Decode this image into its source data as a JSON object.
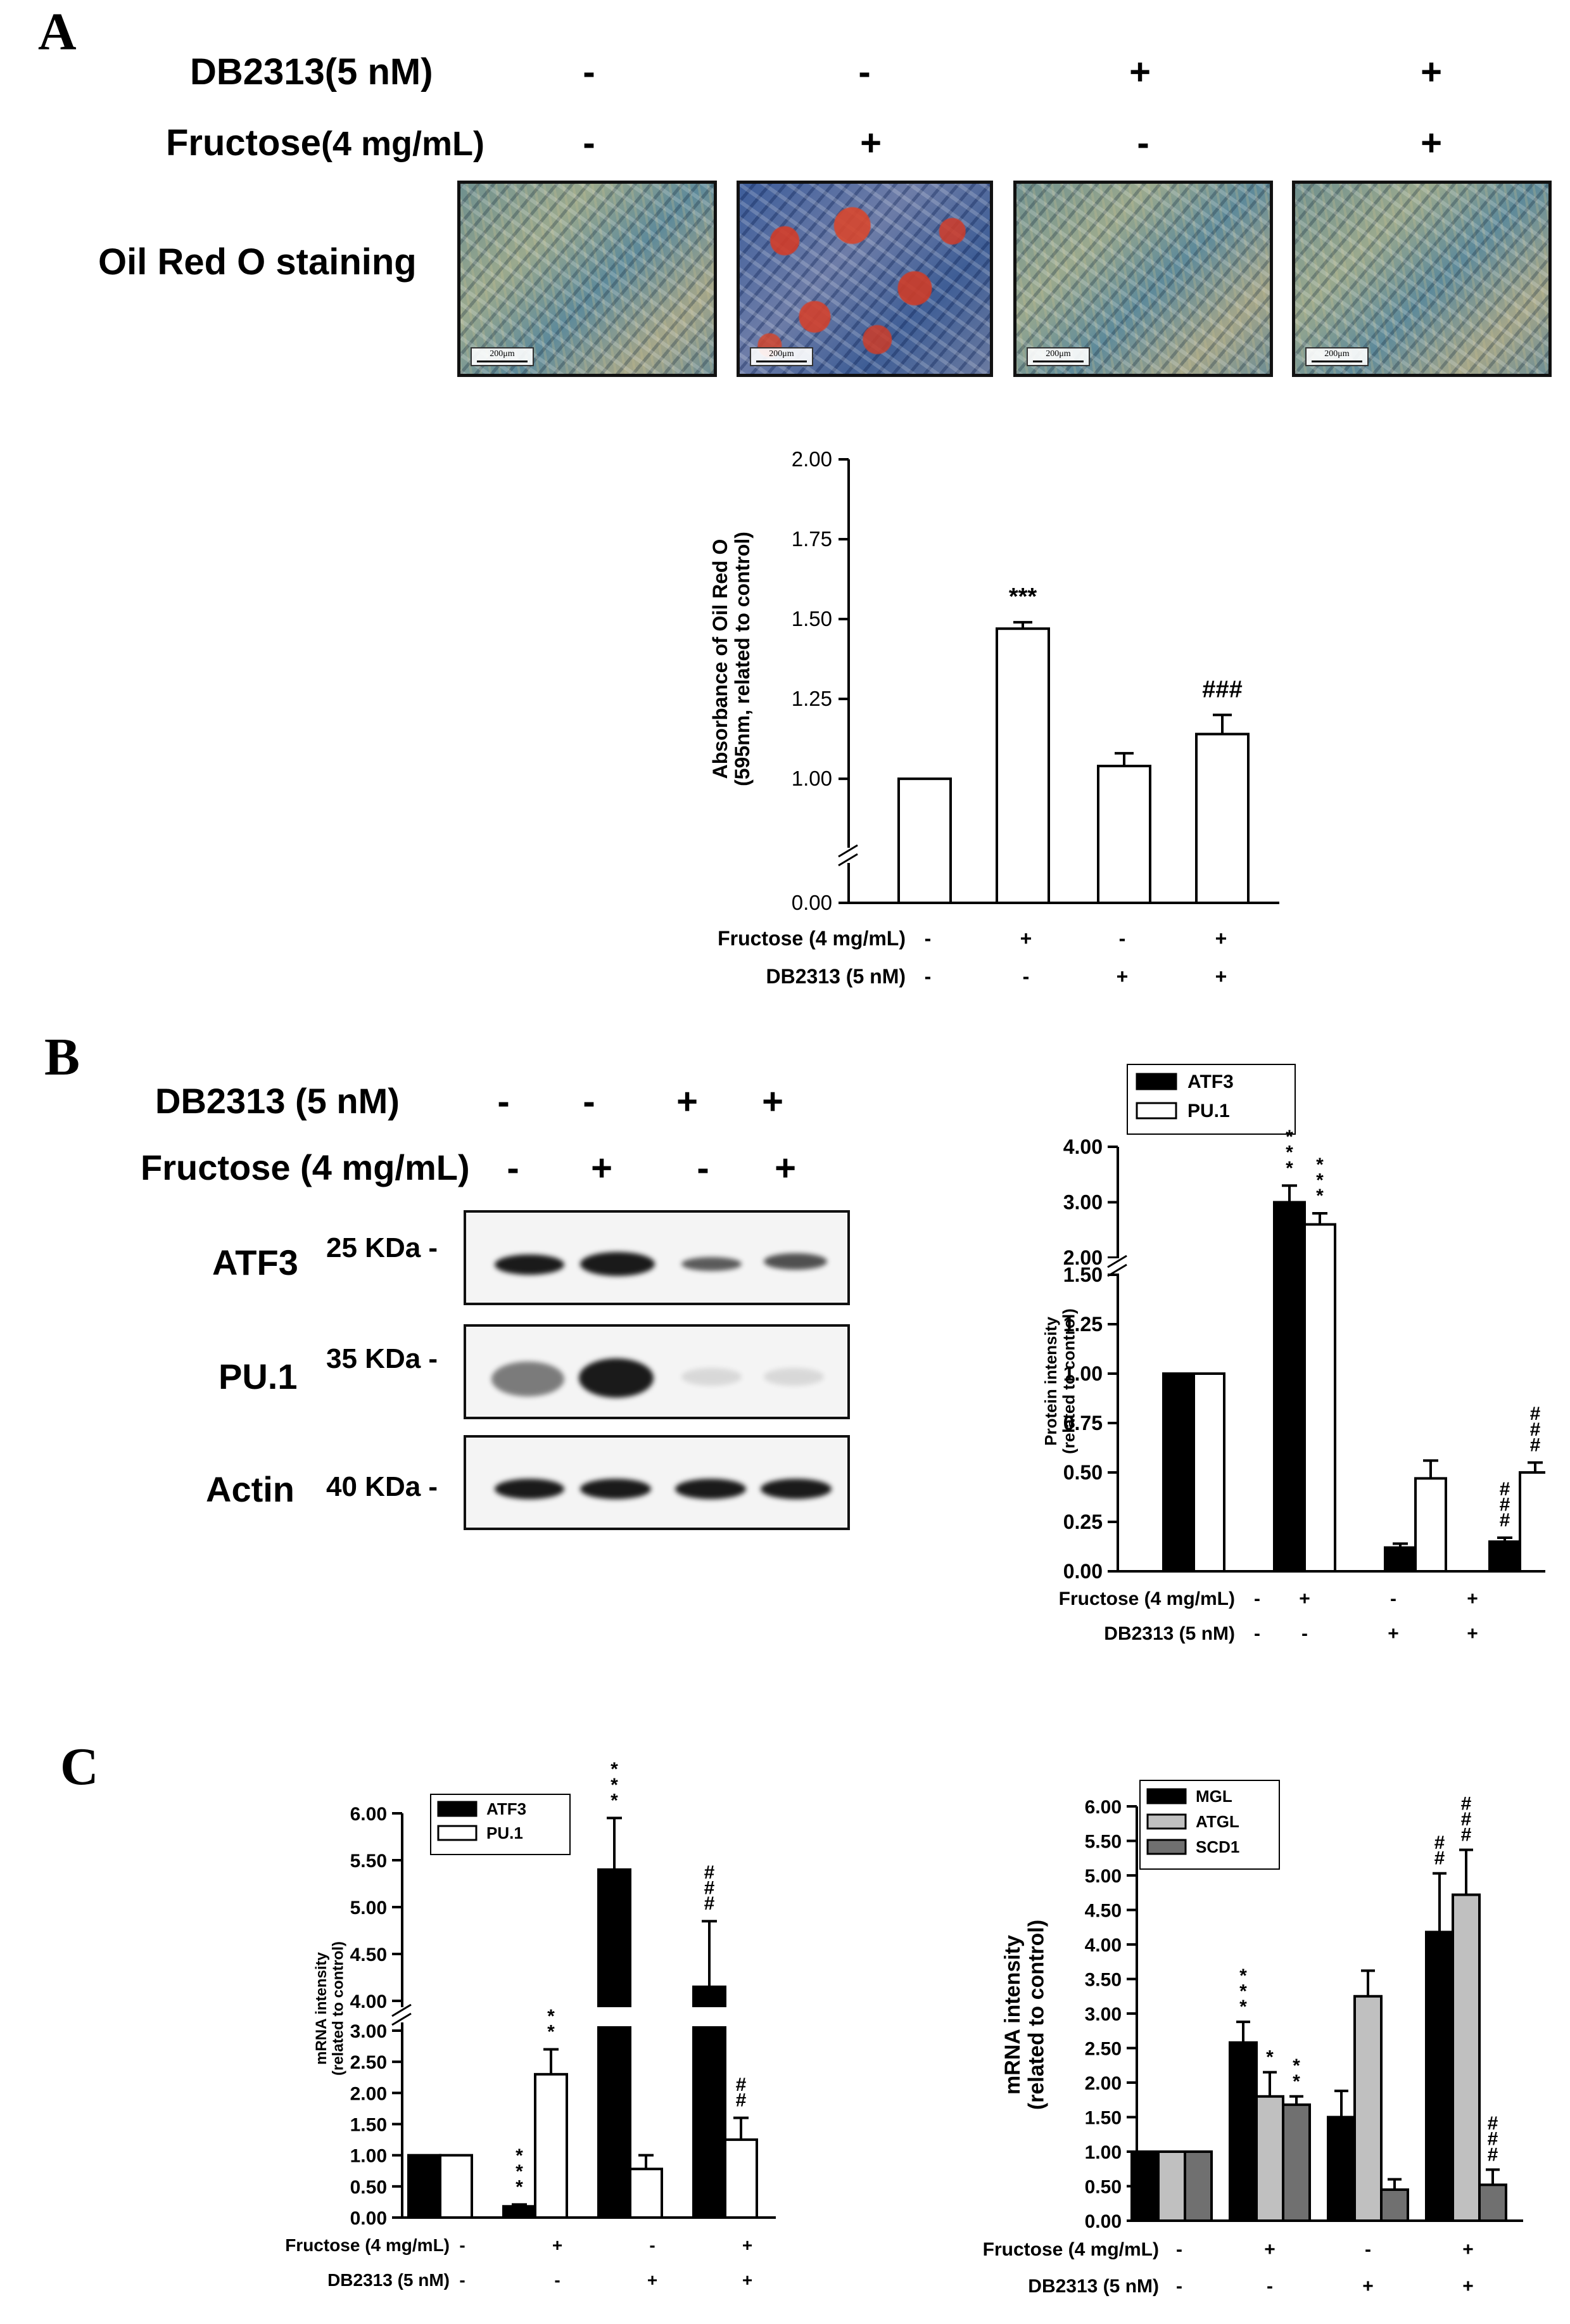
{
  "panelA": {
    "letter": "A",
    "row1_label": "DB2313(5 nM)",
    "row1_signs": [
      "-",
      "-",
      "+",
      "+"
    ],
    "row2_label": "Fructose",
    "row2_label_suffix": "(4 mg/mL)",
    "row2_signs": [
      "-",
      "+",
      "-",
      "+"
    ],
    "row3_label": "Oil Red O staining",
    "scale_label": "200μm"
  },
  "panelB": {
    "letter": "B",
    "row1_label": "DB2313 (5 nM)",
    "row1_signs": [
      "-",
      "-",
      "+",
      "+"
    ],
    "row2_label": "Fructose (4 mg/mL)",
    "row2_signs": [
      "-",
      "+",
      "-",
      "+"
    ],
    "blots": [
      {
        "name": "ATF3",
        "kda": "25 KDa -"
      },
      {
        "name": "PU.1",
        "kda": "35 KDa -"
      },
      {
        "name": "Actin",
        "kda": "40 KDa -"
      }
    ]
  },
  "panelC": {
    "letter": "C"
  },
  "chart_data": [
    {
      "type": "bar",
      "panel": "A",
      "ylabel_line1": "Absorbance of Oil Red O",
      "ylabel_line2": "(595nm, related to control)",
      "yticks": [
        "0.00",
        "1.00",
        "1.25",
        "1.50",
        "1.75",
        "2.00"
      ],
      "axis_break": true,
      "ylim": [
        0,
        2.0
      ],
      "values": [
        1.0,
        1.47,
        1.04,
        1.14
      ],
      "errors": [
        0,
        0.02,
        0.04,
        0.06
      ],
      "annotations": [
        "",
        "***",
        "",
        "###"
      ],
      "xrow1_label": "Fructose  (4 mg/mL)",
      "xrow1": [
        "-",
        "+",
        "-",
        "+"
      ],
      "xrow2_label": "DB2313 (5 nM)",
      "xrow2": [
        "-",
        "-",
        "+",
        "+"
      ]
    },
    {
      "type": "bar",
      "panel": "B",
      "ylabel_line1": "Protein intensity",
      "ylabel_line2": "(related to control)",
      "yticks_lower": [
        "0.00",
        "0.25",
        "0.50",
        "0.75",
        "1.00",
        "1.25",
        "1.50"
      ],
      "yticks_upper": [
        "2.00",
        "3.00",
        "4.00"
      ],
      "axis_break": true,
      "series": [
        {
          "name": "ATF3",
          "values": [
            1.0,
            3.0,
            0.12,
            0.15
          ],
          "errors": [
            0,
            0.3,
            0.02,
            0.02
          ],
          "annotations": [
            "",
            "***",
            "",
            "###"
          ]
        },
        {
          "name": "PU.1",
          "values": [
            1.0,
            2.6,
            0.47,
            0.5
          ],
          "errors": [
            0,
            0.2,
            0.09,
            0.05
          ],
          "annotations": [
            "",
            "***",
            "",
            "###"
          ]
        }
      ],
      "xrow1_label": "Fructose (4 mg/mL)",
      "xrow1": [
        "-",
        "+",
        "-",
        "+"
      ],
      "xrow2_label": "DB2313 (5 nM)",
      "xrow2": [
        "-",
        "-",
        "+",
        "+"
      ]
    },
    {
      "type": "bar",
      "panel": "C-left",
      "ylabel_line1": "mRNA intensity",
      "ylabel_line2": "(related to control)",
      "yticks_lower": [
        "0.00",
        "0.50",
        "1.00",
        "1.50",
        "2.00",
        "2.50",
        "3.00"
      ],
      "yticks_upper": [
        "4.00",
        "4.50",
        "5.00",
        "5.50",
        "6.00"
      ],
      "axis_break": true,
      "series": [
        {
          "name": "ATF3",
          "values": [
            1.0,
            0.18,
            5.4,
            4.15
          ],
          "errors": [
            0,
            0.03,
            0.55,
            0.7
          ],
          "annotations": [
            "",
            "***",
            "***",
            "###"
          ]
        },
        {
          "name": "PU.1",
          "values": [
            1.0,
            2.3,
            0.78,
            1.25
          ],
          "errors": [
            0,
            0.4,
            0.22,
            0.35
          ],
          "annotations": [
            "",
            "**",
            "",
            "##"
          ]
        }
      ],
      "xrow1_label": "Fructose (4 mg/mL)",
      "xrow1": [
        "-",
        "+",
        "-",
        "+"
      ],
      "xrow2_label": "DB2313 (5 nM)",
      "xrow2": [
        "-",
        "-",
        "+",
        "+"
      ]
    },
    {
      "type": "bar",
      "panel": "C-right",
      "ylabel_line1": "mRNA intensity",
      "ylabel_line2": "(related to control)",
      "yticks": [
        "0.00",
        "0.50",
        "1.00",
        "1.50",
        "2.00",
        "2.50",
        "3.00",
        "3.50",
        "4.00",
        "4.50",
        "5.00",
        "5.50",
        "6.00"
      ],
      "ylim": [
        0,
        6.0
      ],
      "series": [
        {
          "name": "MGL",
          "color": "#000000",
          "values": [
            1.0,
            2.58,
            1.5,
            4.18
          ],
          "errors": [
            0,
            0.3,
            0.38,
            0.85
          ],
          "annotations": [
            "",
            "***",
            "",
            "##"
          ]
        },
        {
          "name": "ATGL",
          "color": "#c0c0c0",
          "values": [
            1.0,
            1.8,
            3.25,
            4.72
          ],
          "errors": [
            0,
            0.35,
            0.37,
            0.65
          ],
          "annotations": [
            "",
            "*",
            "",
            "###"
          ]
        },
        {
          "name": "SCD1",
          "color": "#707070",
          "values": [
            1.0,
            1.68,
            0.45,
            0.52
          ],
          "errors": [
            0,
            0.12,
            0.15,
            0.22
          ],
          "annotations": [
            "",
            "**",
            "",
            "###"
          ]
        }
      ],
      "xrow1_label": "Fructose (4 mg/mL)",
      "xrow1": [
        "-",
        "+",
        "-",
        "+"
      ],
      "xrow2_label": "DB2313 (5 nM)",
      "xrow2": [
        "-",
        "-",
        "+",
        "+"
      ]
    }
  ]
}
